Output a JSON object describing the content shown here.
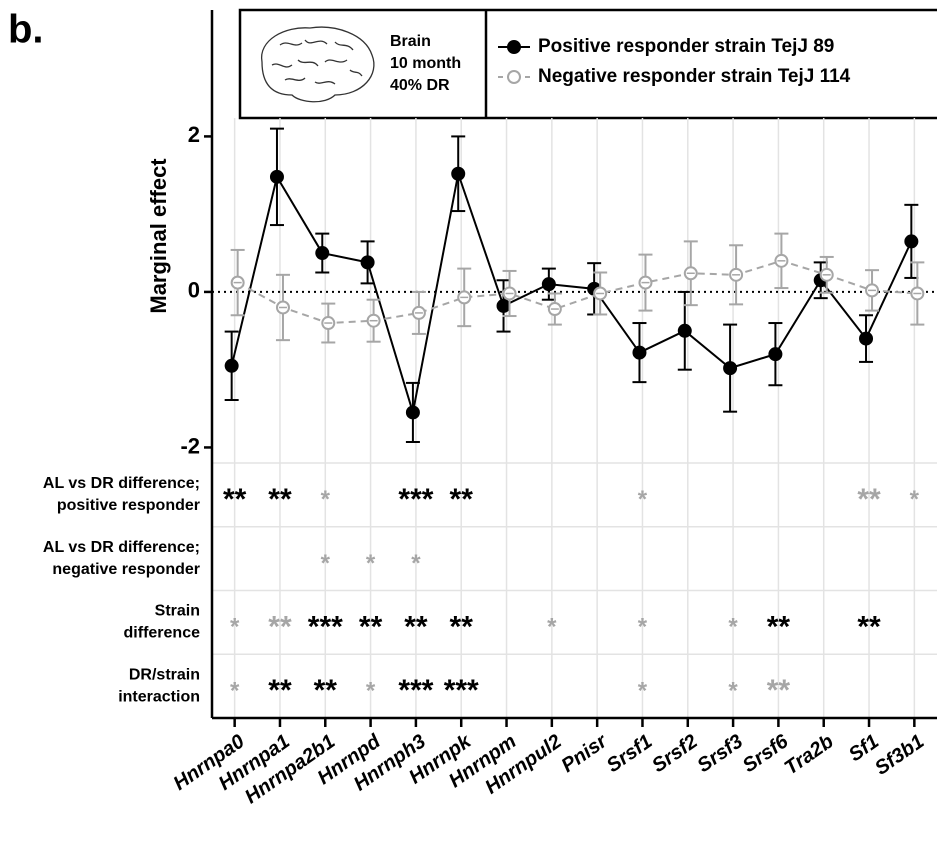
{
  "chart_data": {
    "type": "line",
    "panel_label": "b.",
    "y_label": "Marginal effect",
    "inset": {
      "lines": [
        "Brain",
        "10 month",
        "40% DR"
      ]
    },
    "categories": [
      "Hnrnpa0",
      "Hnrnpa1",
      "Hnrnpa2b1",
      "Hnrnpd",
      "Hnrnph3",
      "Hnrnpk",
      "Hnrnpm",
      "Hnrnpul2",
      "Pnisr",
      "Srsf1",
      "Srsf2",
      "Srsf3",
      "Srsf6",
      "Tra2b",
      "Sf1",
      "Sf3b1"
    ],
    "series": [
      {
        "name": "Positive responder strain TejJ 89",
        "color": "#000000",
        "dashed": false,
        "filled": true,
        "values": [
          -0.95,
          1.48,
          0.5,
          0.38,
          -1.55,
          1.52,
          -0.18,
          0.1,
          0.04,
          -0.78,
          -0.5,
          -0.98,
          -0.8,
          0.15,
          -0.6,
          0.65
        ],
        "errors": [
          0.44,
          0.62,
          0.25,
          0.27,
          0.38,
          0.48,
          0.33,
          0.2,
          0.33,
          0.38,
          0.5,
          0.56,
          0.4,
          0.23,
          0.3,
          0.47
        ]
      },
      {
        "name": "Negative responder strain TejJ 114",
        "color": "#a6a6a6",
        "dashed": true,
        "filled": false,
        "values": [
          0.12,
          -0.2,
          -0.4,
          -0.37,
          -0.27,
          -0.07,
          -0.02,
          -0.22,
          -0.02,
          0.12,
          0.24,
          0.22,
          0.4,
          0.22,
          0.02,
          -0.02
        ],
        "errors": [
          0.42,
          0.42,
          0.25,
          0.27,
          0.27,
          0.37,
          0.29,
          0.2,
          0.27,
          0.36,
          0.41,
          0.38,
          0.35,
          0.23,
          0.26,
          0.4
        ]
      }
    ],
    "ylim": [
      -2.2,
      3.6
    ],
    "yticks": [
      -2,
      0,
      2
    ],
    "reference_line": 0,
    "grid": true,
    "significance": {
      "rows": [
        {
          "label": [
            "AL vs DR difference;",
            "positive responder"
          ],
          "cells": [
            "**",
            "**",
            "*",
            null,
            "***",
            "**",
            null,
            null,
            null,
            "*",
            null,
            null,
            null,
            null,
            "**",
            "*"
          ],
          "colors": [
            "#000000",
            "#000000",
            "#a6a6a6",
            null,
            "#000000",
            "#000000",
            null,
            null,
            null,
            "#a6a6a6",
            null,
            null,
            null,
            null,
            "#a6a6a6",
            "#a6a6a6"
          ]
        },
        {
          "label": [
            "AL vs DR difference;",
            "negative responder"
          ],
          "cells": [
            null,
            null,
            "*",
            "*",
            "*",
            null,
            null,
            null,
            null,
            null,
            null,
            null,
            null,
            null,
            null,
            null
          ],
          "colors": [
            null,
            null,
            "#a6a6a6",
            "#a6a6a6",
            "#a6a6a6",
            null,
            null,
            null,
            null,
            null,
            null,
            null,
            null,
            null,
            null,
            null
          ]
        },
        {
          "label": [
            "Strain",
            "difference"
          ],
          "cells": [
            "*",
            "**",
            "***",
            "**",
            "**",
            "**",
            null,
            "*",
            null,
            "*",
            null,
            "*",
            "**",
            null,
            "**",
            null
          ],
          "colors": [
            "#a6a6a6",
            "#a6a6a6",
            "#000000",
            "#000000",
            "#000000",
            "#000000",
            null,
            "#a6a6a6",
            null,
            "#a6a6a6",
            null,
            "#a6a6a6",
            "#000000",
            null,
            "#000000",
            null
          ]
        },
        {
          "label": [
            "DR/strain",
            "interaction"
          ],
          "cells": [
            "*",
            "**",
            "**",
            "*",
            "***",
            "***",
            null,
            null,
            null,
            "*",
            null,
            "*",
            "**",
            null,
            null,
            null
          ],
          "colors": [
            "#a6a6a6",
            "#000000",
            "#000000",
            "#a6a6a6",
            "#000000",
            "#000000",
            null,
            null,
            null,
            "#a6a6a6",
            null,
            "#a6a6a6",
            "#a6a6a6",
            null,
            null,
            null
          ]
        }
      ]
    }
  }
}
